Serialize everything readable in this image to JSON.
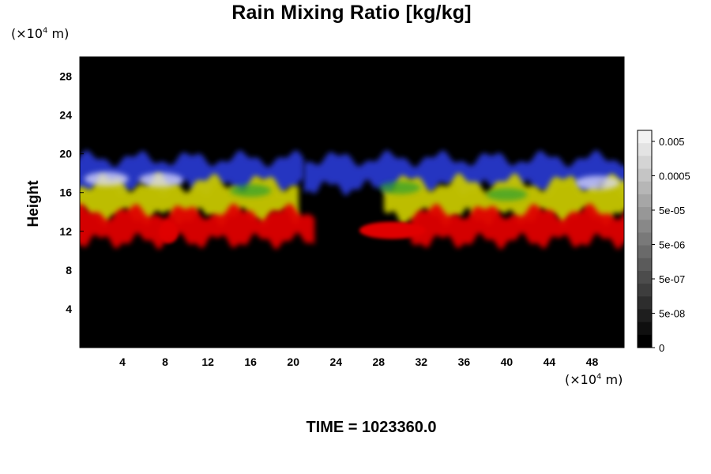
{
  "chart_data": {
    "type": "heatmap",
    "title": "Rain Mixing Ratio [kg/kg]",
    "ylabel": "Height",
    "xlabel": "",
    "x_unit_label": "(×10⁴ m)",
    "y_unit_label": "(×10⁴ m)",
    "xlim": [
      0,
      51
    ],
    "ylim": [
      0,
      30
    ],
    "x_ticks": [
      4,
      8,
      12,
      16,
      20,
      24,
      28,
      32,
      36,
      40,
      44,
      48
    ],
    "y_ticks": [
      4,
      8,
      12,
      16,
      20,
      24,
      28
    ],
    "colorbar": {
      "labels": [
        "0.005",
        "0.0005",
        "5e-05",
        "5e-06",
        "5e-07",
        "5e-08",
        "0"
      ],
      "scale": "log",
      "colors": [
        "#ffffff",
        "#000000"
      ]
    },
    "bands": [
      {
        "color": "#2a3bd6",
        "approx_height_range": [
          16.5,
          19.5
        ]
      },
      {
        "color": "#c8c800",
        "approx_height_range": [
          13.5,
          17.0
        ]
      },
      {
        "color": "#e00000",
        "approx_height_range": [
          11.0,
          14.0
        ]
      }
    ],
    "grid": false,
    "background": "#000000"
  },
  "footer": {
    "label": "TIME = 1023360.0"
  }
}
